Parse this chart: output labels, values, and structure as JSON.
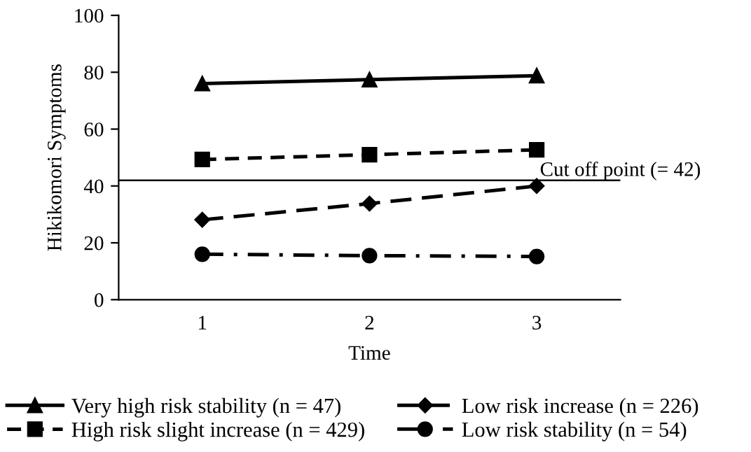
{
  "chart_data": {
    "type": "line",
    "xlabel": "Time",
    "ylabel": "Hikikomori Symptoms",
    "categories": [
      "1",
      "2",
      "3"
    ],
    "series": [
      {
        "name": "Very high risk stability (n = 47)",
        "color": "#000000",
        "values": [
          76,
          77.4,
          78.8
        ],
        "marker": "triangle",
        "line_style": "solid"
      },
      {
        "name": "High risk slight increase (n = 429)",
        "color": "#000000",
        "values": [
          49.3,
          51,
          52.7
        ],
        "marker": "square",
        "line_style": "dashed"
      },
      {
        "name": "Low risk increase (n = 226)",
        "color": "#000000",
        "values": [
          28.1,
          33.8,
          40
        ],
        "marker": "diamond",
        "line_style": "dashed"
      },
      {
        "name": "Low risk stability (n = 54)",
        "color": "#000000",
        "values": [
          16,
          15.5,
          15.2
        ],
        "marker": "circle",
        "line_style": "dashdot"
      }
    ],
    "ylim": [
      0,
      100
    ],
    "yticks": [
      0,
      20,
      40,
      60,
      80,
      100
    ],
    "ref_lines": [
      {
        "axis": "y",
        "value": 42,
        "label": "Cut off point (= 42)",
        "color": "#000000",
        "line_style": "solid"
      }
    ],
    "grid": false,
    "legend": "bottom"
  }
}
